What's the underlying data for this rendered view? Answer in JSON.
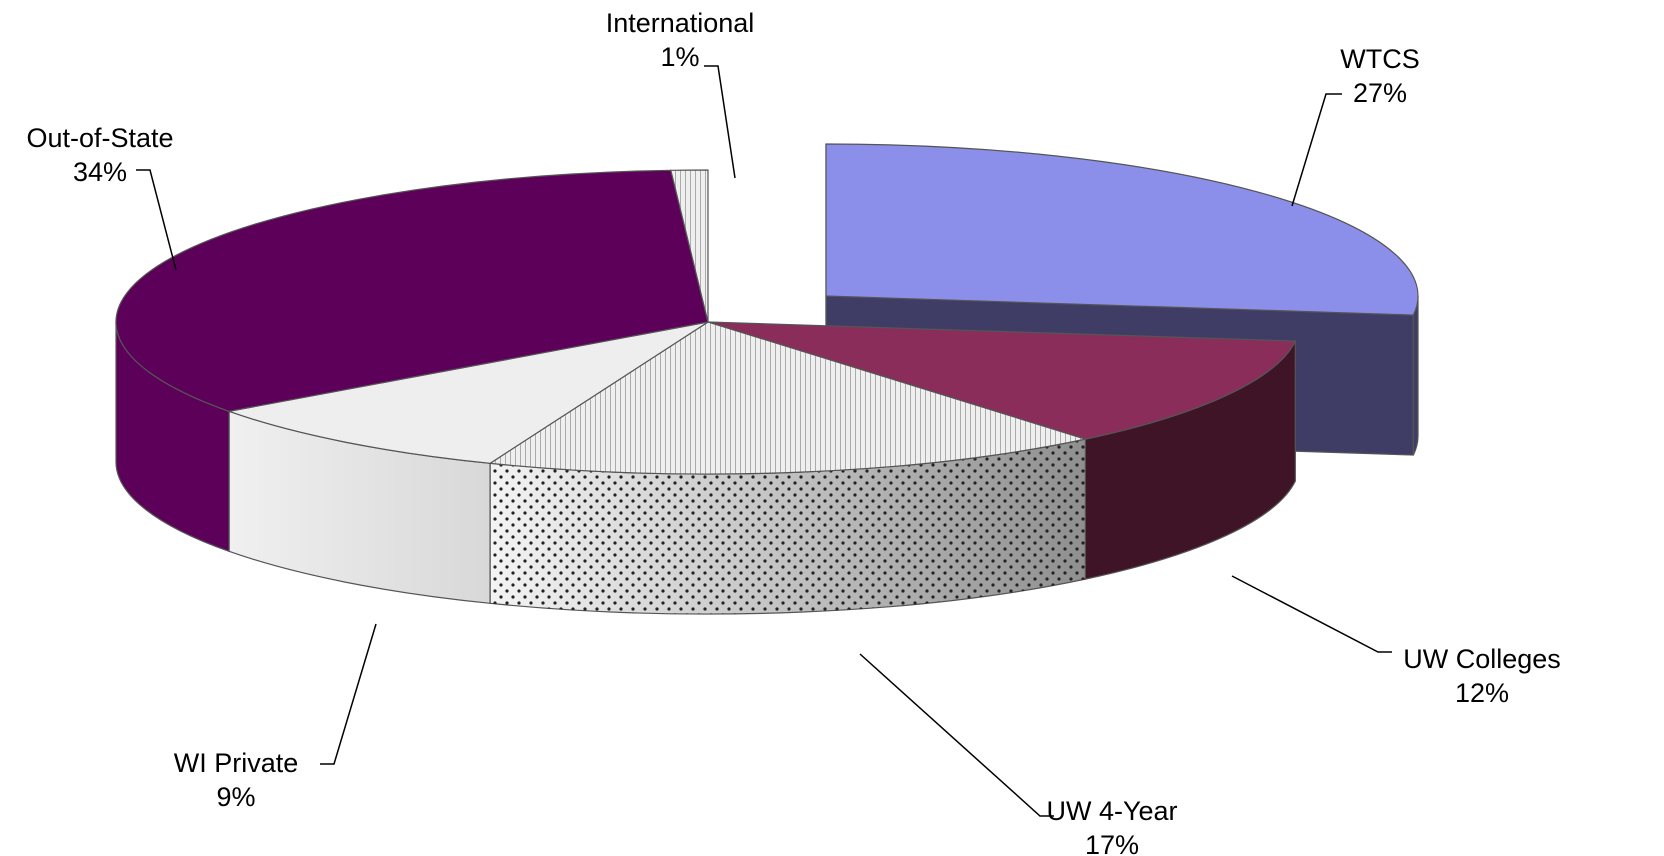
{
  "chart_data": {
    "type": "pie",
    "style": "3d-exploded",
    "legend": "none",
    "slices": [
      {
        "name": "WTCS",
        "value": 27,
        "label": "27%",
        "color": "#8c8fea",
        "side_color": "#3f3d66",
        "exploded": true
      },
      {
        "name": "UW Colleges",
        "value": 12,
        "label": "12%",
        "color": "#8b2d5a",
        "side_color": "#3f1427",
        "pattern": "none"
      },
      {
        "name": "UW 4-Year",
        "value": 17,
        "label": "17%",
        "color": "#f2f2f2",
        "side_color": "#c8c8c8",
        "pattern": "dots"
      },
      {
        "name": "WI Private",
        "value": 9,
        "label": "9%",
        "color": "#eeeeee",
        "side_color": "#e2e2e2",
        "pattern": "none"
      },
      {
        "name": "Out-of-State",
        "value": 34,
        "label": "34%",
        "color": "#5d005a",
        "side_color": "#5d005a",
        "pattern": "none"
      },
      {
        "name": "International",
        "value": 1,
        "label": "1%",
        "color": "#bdbdbd",
        "side_color": "#9a9a9a",
        "pattern": "stripes"
      }
    ]
  }
}
